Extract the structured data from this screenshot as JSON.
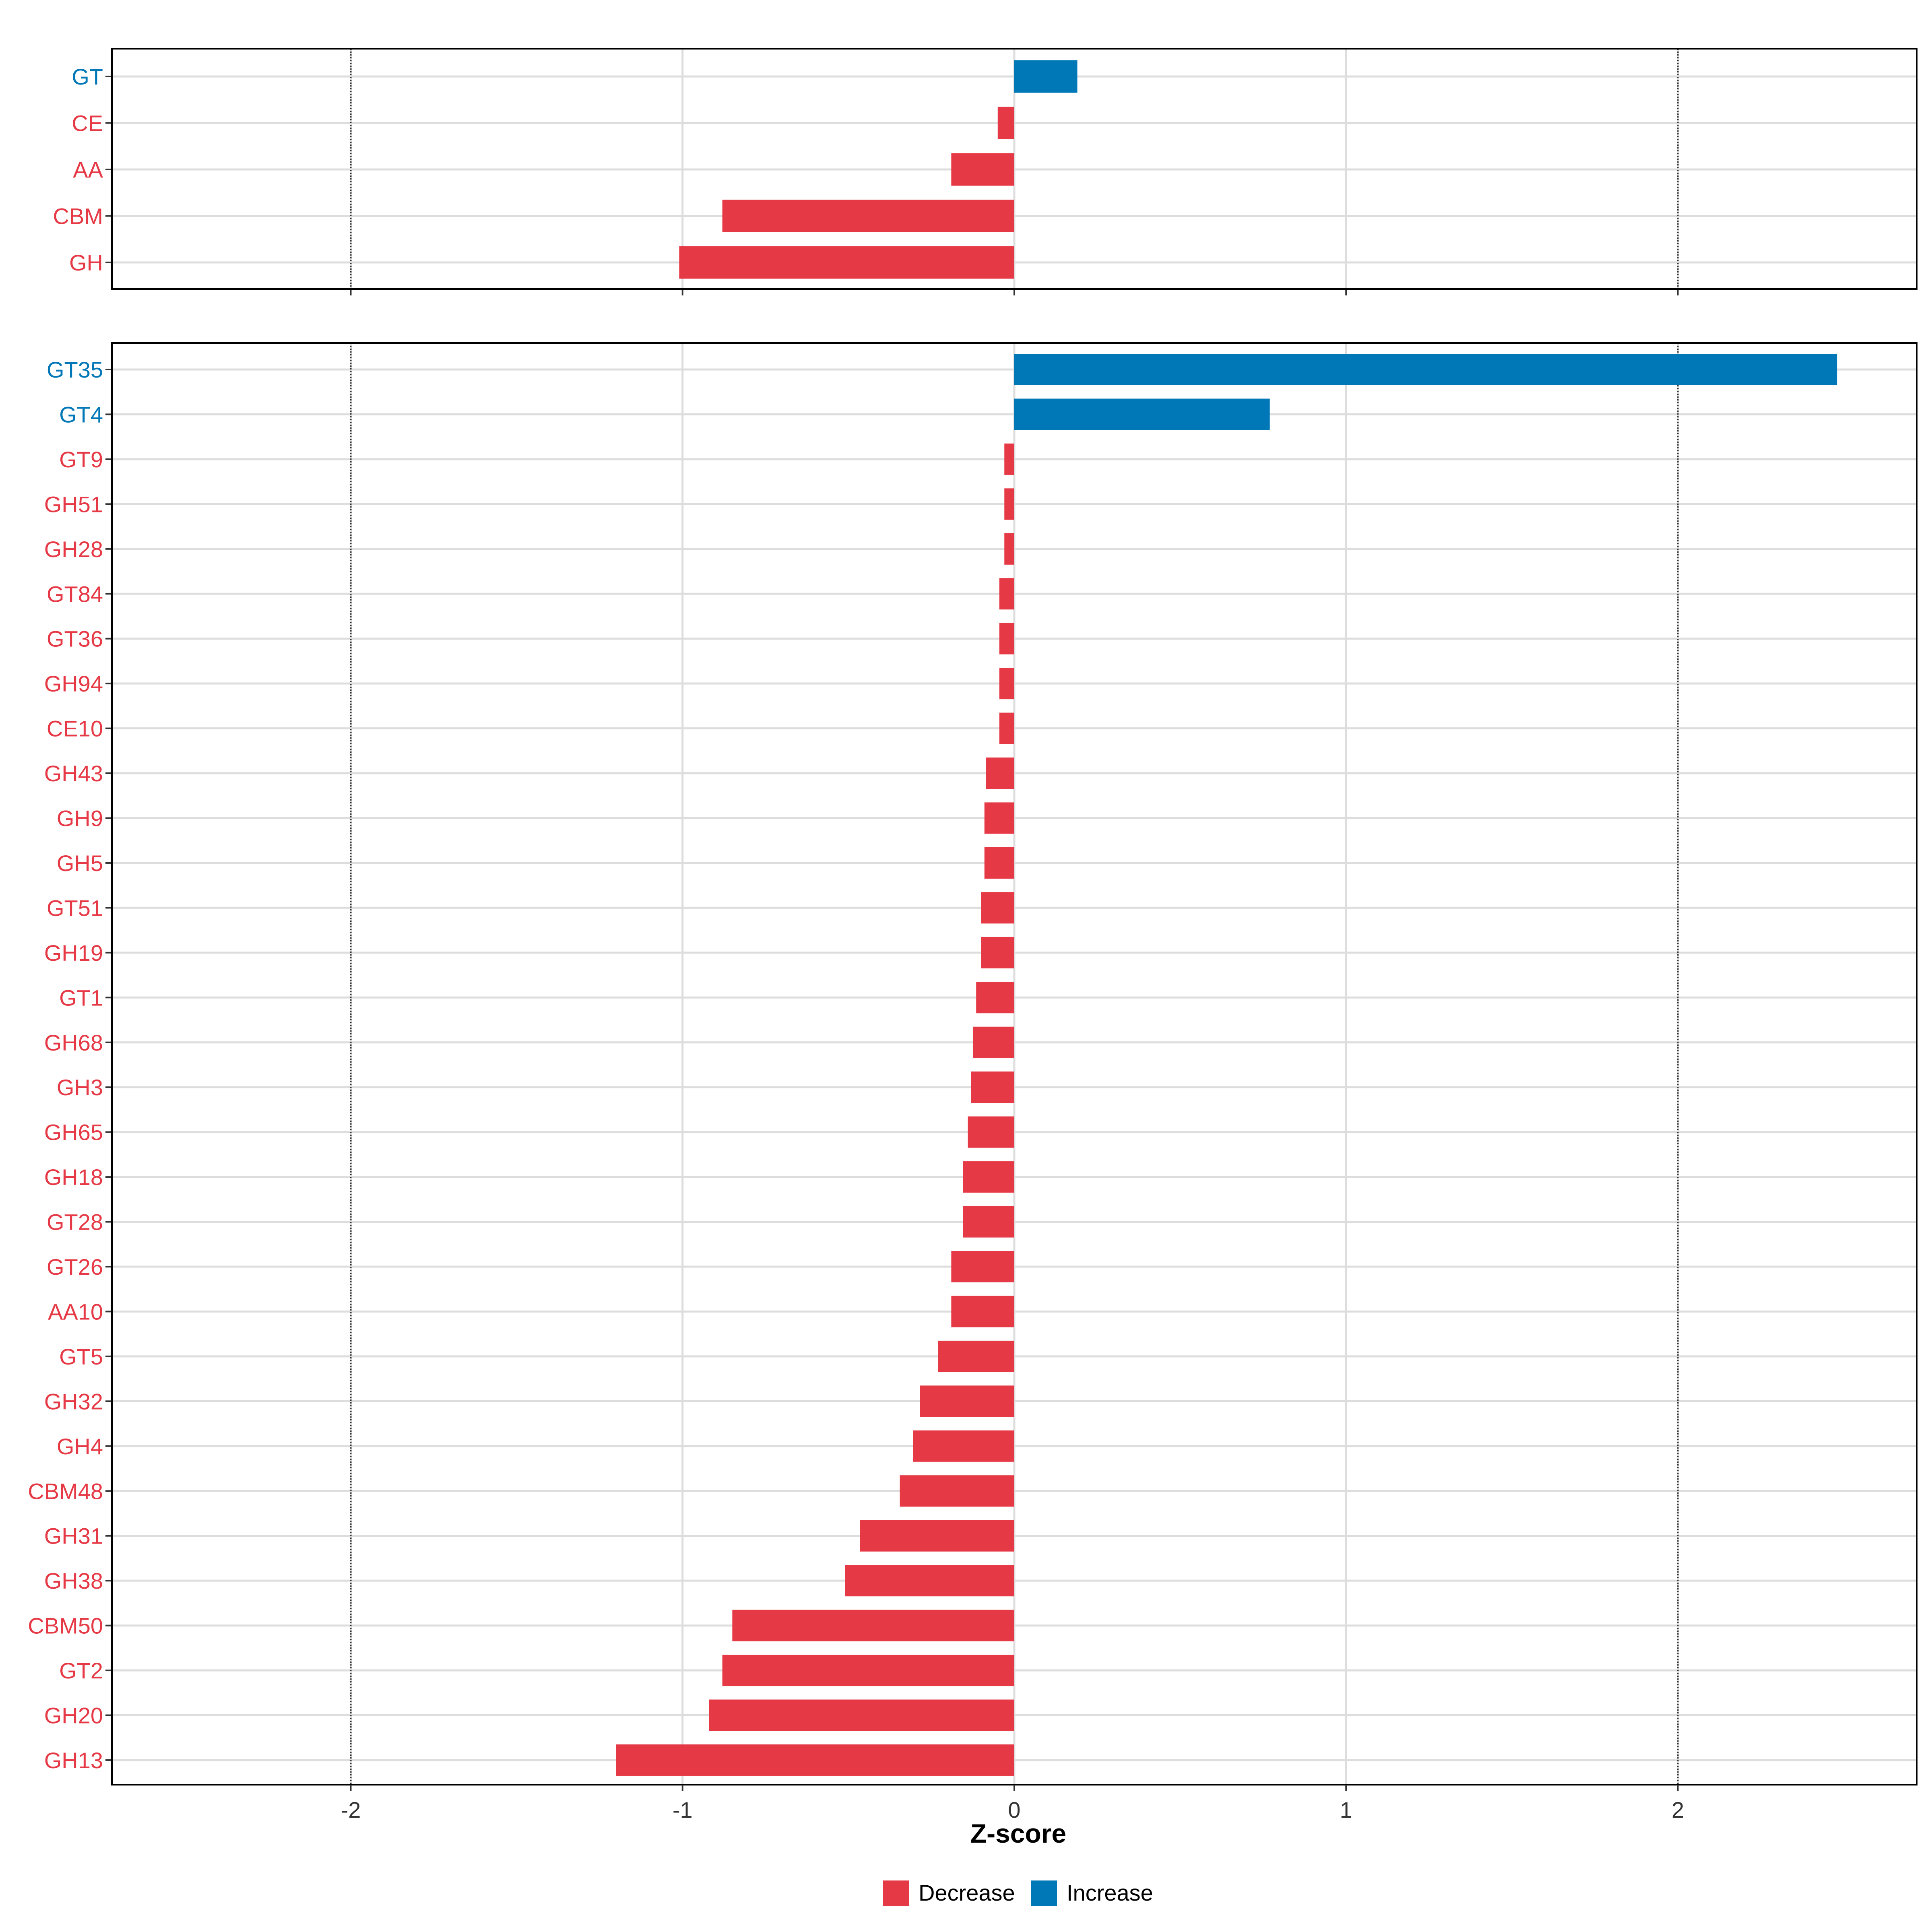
{
  "colors": {
    "decrease": "#E63946",
    "increase": "#0077B6",
    "grid": "#DDDDDD",
    "text": "#000000"
  },
  "chart_data": [
    {
      "type": "bar",
      "orientation": "horizontal",
      "panel": "top",
      "categories": [
        "GT",
        "CE",
        "AA",
        "CBM",
        "GH"
      ],
      "values": [
        0.19,
        -0.05,
        -0.19,
        -0.88,
        -1.01
      ],
      "directions": [
        "Increase",
        "Decrease",
        "Decrease",
        "Decrease",
        "Decrease"
      ],
      "xlim": [
        -2.72,
        2.72
      ],
      "reference_lines": [
        -2,
        2
      ]
    },
    {
      "type": "bar",
      "orientation": "horizontal",
      "panel": "bottom",
      "categories": [
        "GT35",
        "GT4",
        "GT9",
        "GH51",
        "GH28",
        "GT84",
        "GT36",
        "GH94",
        "CE10",
        "GH43",
        "GH9",
        "GH5",
        "GT51",
        "GH19",
        "GT1",
        "GH68",
        "GH3",
        "GH65",
        "GH18",
        "GT28",
        "GT26",
        "AA10",
        "GT5",
        "GH32",
        "GH4",
        "CBM48",
        "GH31",
        "GH38",
        "CBM50",
        "GT2",
        "GH20",
        "GH13"
      ],
      "values": [
        2.48,
        0.77,
        -0.03,
        -0.03,
        -0.03,
        -0.045,
        -0.045,
        -0.045,
        -0.045,
        -0.085,
        -0.09,
        -0.09,
        -0.1,
        -0.1,
        -0.115,
        -0.125,
        -0.13,
        -0.14,
        -0.155,
        -0.155,
        -0.19,
        -0.19,
        -0.23,
        -0.285,
        -0.305,
        -0.345,
        -0.465,
        -0.51,
        -0.85,
        -0.88,
        -0.92,
        -1.2
      ],
      "directions": [
        "Increase",
        "Increase",
        "Decrease",
        "Decrease",
        "Decrease",
        "Decrease",
        "Decrease",
        "Decrease",
        "Decrease",
        "Decrease",
        "Decrease",
        "Decrease",
        "Decrease",
        "Decrease",
        "Decrease",
        "Decrease",
        "Decrease",
        "Decrease",
        "Decrease",
        "Decrease",
        "Decrease",
        "Decrease",
        "Decrease",
        "Decrease",
        "Decrease",
        "Decrease",
        "Decrease",
        "Decrease",
        "Decrease",
        "Decrease",
        "Decrease",
        "Decrease"
      ],
      "xlim": [
        -2.72,
        2.72
      ],
      "reference_lines": [
        -2,
        2
      ],
      "xticks": [
        "-2",
        "-1",
        "0",
        "1",
        "2"
      ],
      "xlabel": "Z-score"
    }
  ],
  "legend": {
    "position": "bottom",
    "items": [
      "Decrease",
      "Increase"
    ]
  }
}
